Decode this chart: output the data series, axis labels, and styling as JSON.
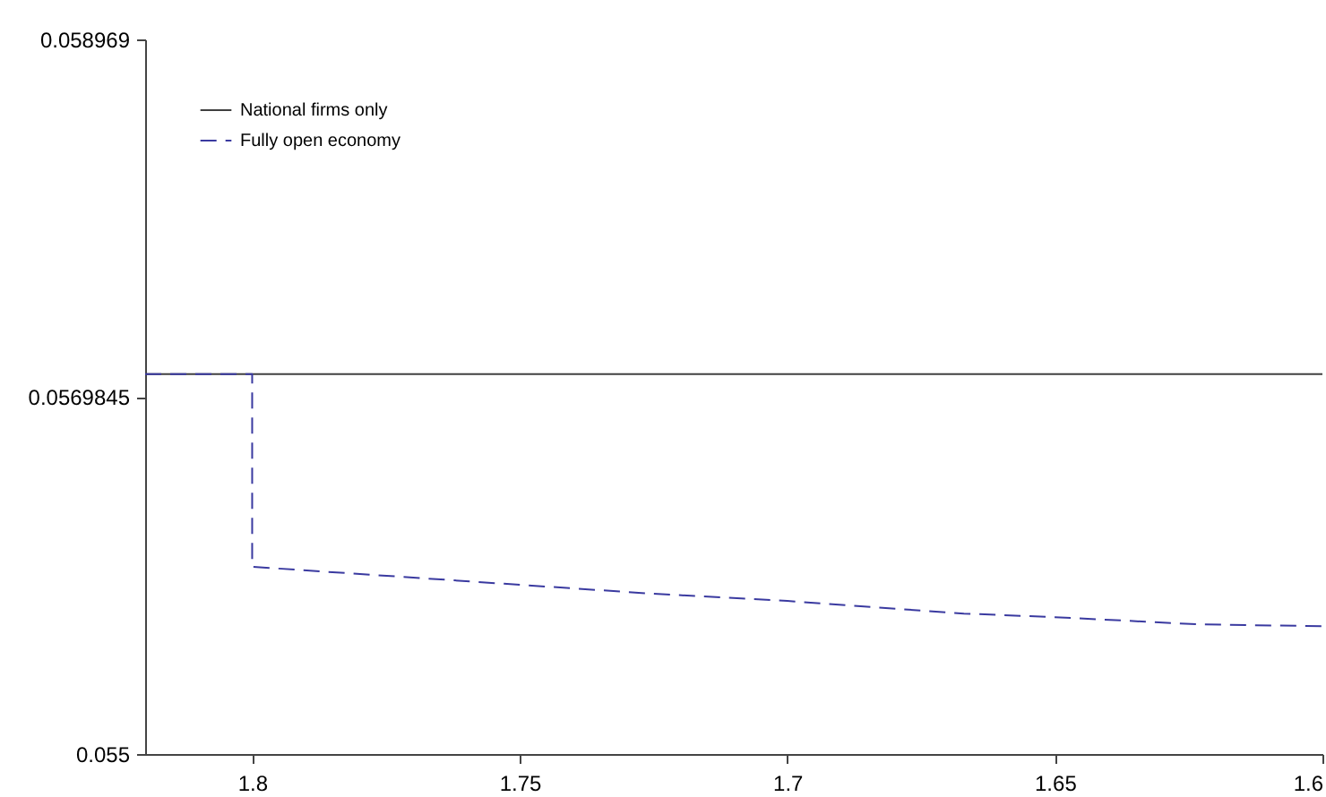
{
  "chart_data": {
    "type": "line",
    "xlim": [
      1.82,
      1.6
    ],
    "xticks": [
      1.8,
      1.75,
      1.7,
      1.65,
      1.6
    ],
    "ylim": [
      0.055,
      0.058969
    ],
    "yticks": [
      0.055,
      0.0569845,
      0.058969
    ],
    "grid": false,
    "legend": "top left",
    "marker": "none",
    "series": [
      {
        "name": "National firms only",
        "color": "#404040",
        "line_style": "solid",
        "x": [
          1.82,
          1.6
        ],
        "values": [
          0.05711,
          0.05711
        ]
      },
      {
        "name": "Fully open economy",
        "color": "#3a3aa0",
        "line_style": "dashed",
        "x": [
          1.82,
          1.8,
          1.8,
          1.75,
          1.725,
          1.7,
          1.667,
          1.65,
          1.623,
          1.6
        ],
        "values": [
          0.05711,
          0.05711,
          0.05604,
          0.05594,
          0.05589,
          0.05585,
          0.05578,
          0.05576,
          0.05572,
          0.05571
        ]
      }
    ]
  }
}
